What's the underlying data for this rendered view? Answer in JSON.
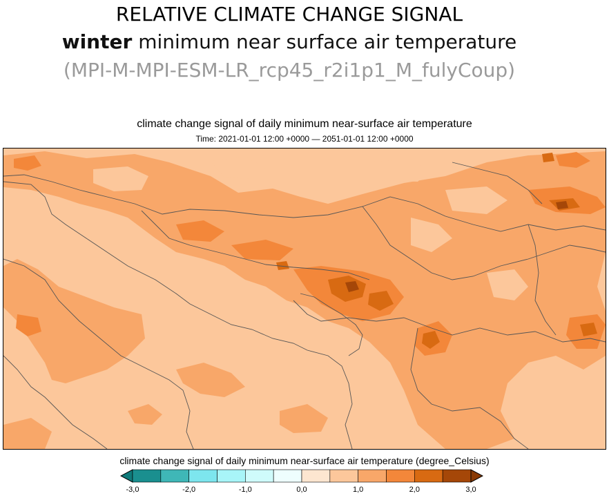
{
  "slide": {
    "title_line1": "RELATIVE CLIMATE CHANGE SIGNAL",
    "title_line2_bold": "winter",
    "title_line2_rest": " minimum near surface air temperature",
    "title_line3": "(MPI-M-MPI-ESM-LR_rcp45_r2i1p1_M_fulyCoup)"
  },
  "map": {
    "title": "climate change signal of daily minimum near-surface air temperature",
    "time_label": "Time: 2021-01-01 12:00 +0000 — 2051-01-01 12:00 +0000"
  },
  "colorbar": {
    "label": "climate change signal of daily minimum near-surface air temperature (degree_Celsius)",
    "ticks": [
      "-3,0",
      "-2,0",
      "-1,0",
      "0,0",
      "1,0",
      "2,0",
      "3,0"
    ],
    "tick_values": [
      -3.0,
      -2.0,
      -1.0,
      0.0,
      1.0,
      2.0,
      3.0
    ],
    "bins": [
      -3.0,
      -2.5,
      -2.0,
      -1.5,
      -1.0,
      -0.5,
      0.0,
      0.5,
      1.0,
      1.5,
      2.0,
      2.5,
      3.0
    ],
    "colors": [
      "#1a8f8f",
      "#3fb7b7",
      "#7de6ee",
      "#a8f5f8",
      "#cffbfb",
      "#eefefe",
      "#fde6d0",
      "#fcc79b",
      "#f8a769",
      "#f3873a",
      "#d86a12",
      "#a54708"
    ],
    "extend_low_color": "#0f7a7a",
    "extend_high_color": "#8a3a05"
  }
}
